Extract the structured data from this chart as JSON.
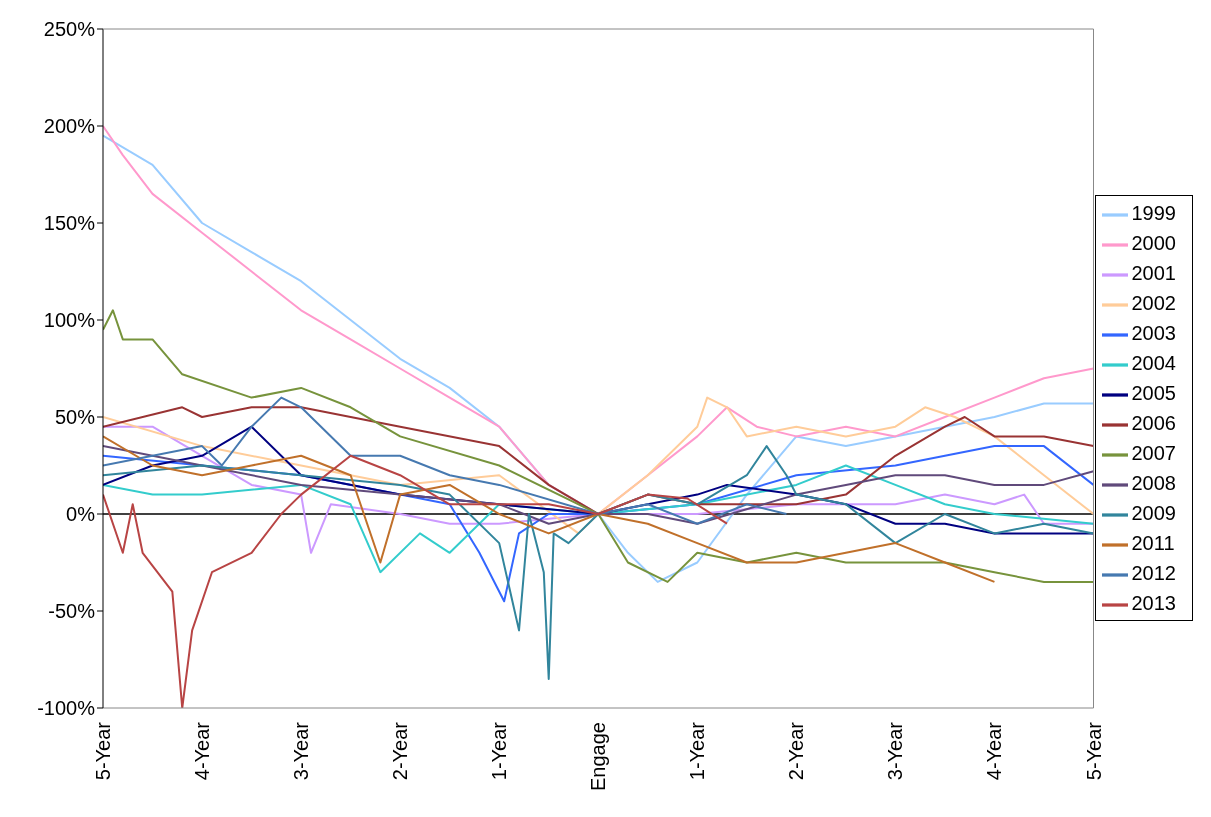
{
  "chart_data": {
    "type": "line",
    "xlim": [
      -5,
      5
    ],
    "xticks": [
      {
        "value": -5,
        "label": "5-Year"
      },
      {
        "value": -4,
        "label": "4-Year"
      },
      {
        "value": -3,
        "label": "3-Year"
      },
      {
        "value": -2,
        "label": "2-Year"
      },
      {
        "value": -1,
        "label": "1-Year"
      },
      {
        "value": 0,
        "label": "Engage"
      },
      {
        "value": 1,
        "label": "1-Year"
      },
      {
        "value": 2,
        "label": "2-Year"
      },
      {
        "value": 3,
        "label": "3-Year"
      },
      {
        "value": 4,
        "label": "4-Year"
      },
      {
        "value": 5,
        "label": "5-Year"
      }
    ],
    "ylim": [
      -100,
      250
    ],
    "yticks": [
      {
        "value": -100,
        "label": "-100%"
      },
      {
        "value": -50,
        "label": "-50%"
      },
      {
        "value": 0,
        "label": "0%"
      },
      {
        "value": 50,
        "label": "50%"
      },
      {
        "value": 100,
        "label": "100%"
      },
      {
        "value": 150,
        "label": "150%"
      },
      {
        "value": 200,
        "label": "200%"
      },
      {
        "value": 250,
        "label": "250%"
      }
    ],
    "legend": "right",
    "marker": "none",
    "line_style": "solid",
    "series": [
      {
        "name": "1999",
        "color": "#99ccff",
        "x": [
          -5,
          -4.5,
          -4,
          -3.5,
          -3,
          -2.5,
          -2,
          -1.5,
          -1,
          -0.5,
          0,
          0.3,
          0.6,
          1,
          1.5,
          2,
          2.5,
          3,
          3.5,
          4,
          4.5,
          5
        ],
        "values": [
          195,
          180,
          150,
          135,
          120,
          100,
          80,
          65,
          45,
          15,
          0,
          -20,
          -35,
          -25,
          10,
          40,
          35,
          40,
          45,
          50,
          57,
          57
        ]
      },
      {
        "name": "2000",
        "color": "#ff99cc",
        "x": [
          -5,
          -4.8,
          -4.5,
          -4,
          -3.5,
          -3,
          -2.5,
          -2,
          -1.5,
          -1,
          -0.5,
          0,
          0.5,
          1,
          1.3,
          1.6,
          2,
          2.5,
          3,
          3.5,
          4,
          4.5,
          5
        ],
        "values": [
          200,
          185,
          165,
          145,
          125,
          105,
          90,
          75,
          60,
          45,
          15,
          0,
          20,
          40,
          55,
          45,
          40,
          45,
          40,
          50,
          60,
          70,
          75
        ]
      },
      {
        "name": "2001",
        "color": "#cc99ff",
        "x": [
          -5,
          -4.5,
          -4,
          -3.5,
          -3,
          -2.9,
          -2.7,
          -2,
          -1.5,
          -1,
          0,
          1,
          2,
          3,
          3.5,
          4,
          4.3,
          4.5,
          5
        ],
        "values": [
          45,
          45,
          30,
          15,
          10,
          -20,
          5,
          0,
          -5,
          -5,
          0,
          0,
          5,
          5,
          10,
          5,
          10,
          -5,
          -5
        ]
      },
      {
        "name": "2002",
        "color": "#ffcc99",
        "x": [
          -5,
          -4,
          -3,
          -2,
          -1,
          -0.2,
          0,
          0.5,
          1,
          1.1,
          1.3,
          1.5,
          2,
          2.5,
          3,
          3.3,
          3.6,
          4,
          4.5,
          5
        ],
        "values": [
          50,
          35,
          25,
          15,
          20,
          -10,
          0,
          20,
          45,
          60,
          55,
          40,
          45,
          40,
          45,
          55,
          50,
          40,
          20,
          0
        ]
      },
      {
        "name": "2003",
        "color": "#3366ff",
        "x": [
          -5,
          -4,
          -3,
          -2,
          -1.5,
          -1.2,
          -0.95,
          -0.8,
          -0.5,
          0,
          1,
          2,
          3,
          3.5,
          4,
          4.5,
          5
        ],
        "values": [
          30,
          25,
          20,
          10,
          5,
          -20,
          -45,
          -10,
          0,
          0,
          5,
          20,
          25,
          30,
          35,
          35,
          15
        ]
      },
      {
        "name": "2004",
        "color": "#33cccc",
        "x": [
          -5,
          -4.5,
          -4,
          -3,
          -2.5,
          -2.2,
          -1.8,
          -1.5,
          -1,
          0,
          1,
          2,
          2.5,
          3,
          3.5,
          4,
          5
        ],
        "values": [
          15,
          10,
          10,
          15,
          5,
          -30,
          -10,
          -20,
          5,
          0,
          5,
          15,
          25,
          15,
          5,
          0,
          -5
        ]
      },
      {
        "name": "2005",
        "color": "#000080",
        "x": [
          -5,
          -4.5,
          -4,
          -3.5,
          -3,
          -2,
          -1,
          0,
          1,
          1.3,
          2,
          2.5,
          3,
          3.5,
          4,
          5
        ],
        "values": [
          15,
          25,
          30,
          45,
          20,
          10,
          5,
          0,
          10,
          15,
          10,
          5,
          -5,
          -5,
          -10,
          -10
        ]
      },
      {
        "name": "2006",
        "color": "#993333",
        "x": [
          -5,
          -4.2,
          -4,
          -3.5,
          -3,
          -2.5,
          -2,
          -1,
          -0.5,
          0,
          0.5,
          1,
          2,
          2.5,
          3,
          3.5,
          3.7,
          4,
          4.5,
          5
        ],
        "values": [
          45,
          55,
          50,
          55,
          55,
          50,
          45,
          35,
          15,
          0,
          10,
          5,
          5,
          10,
          30,
          45,
          50,
          40,
          40,
          35
        ]
      },
      {
        "name": "2007",
        "color": "#77933c",
        "x": [
          -5,
          -4.9,
          -4.8,
          -4.5,
          -4.2,
          -3.5,
          -3,
          -2.5,
          -2,
          -1,
          0,
          0.3,
          0.7,
          1,
          1.5,
          2,
          2.5,
          3,
          3.5,
          4,
          4.5,
          5
        ],
        "values": [
          95,
          105,
          90,
          90,
          72,
          60,
          65,
          55,
          40,
          25,
          0,
          -25,
          -35,
          -20,
          -25,
          -20,
          -25,
          -25,
          -25,
          -30,
          -35,
          -35
        ]
      },
      {
        "name": "2008",
        "color": "#604a7b",
        "x": [
          -5,
          -4.5,
          -4,
          -3,
          -2,
          -1,
          -0.5,
          0,
          0.5,
          1,
          2,
          2.5,
          3,
          3.5,
          4,
          4.5,
          5
        ],
        "values": [
          35,
          30,
          25,
          15,
          10,
          5,
          -5,
          0,
          0,
          -5,
          10,
          15,
          20,
          20,
          15,
          15,
          22
        ]
      },
      {
        "name": "2009",
        "color": "#31859c",
        "x": [
          -5,
          -4,
          -3,
          -2,
          -1.5,
          -1,
          -0.8,
          -0.7,
          -0.55,
          -0.5,
          -0.45,
          -0.3,
          0,
          0.5,
          1,
          1.5,
          1.7,
          1.9,
          2,
          2.5,
          3,
          3.5,
          4,
          4.5,
          5
        ],
        "values": [
          20,
          25,
          20,
          15,
          10,
          -15,
          -60,
          0,
          -30,
          -85,
          -10,
          -15,
          0,
          10,
          5,
          20,
          35,
          20,
          10,
          5,
          -15,
          0,
          -10,
          -5,
          -10
        ]
      },
      {
        "name": "2011",
        "color": "#c0702a",
        "x": [
          -5,
          -4.5,
          -4,
          -3.5,
          -3,
          -2.5,
          -2.2,
          -2,
          -1.5,
          -1,
          -0.5,
          0,
          0.5,
          1,
          1.5,
          2,
          2.5,
          3,
          3.5,
          4
        ],
        "values": [
          40,
          25,
          20,
          25,
          30,
          20,
          -25,
          10,
          15,
          0,
          -10,
          0,
          -5,
          -15,
          -25,
          -25,
          -20,
          -15,
          -25,
          -35
        ]
      },
      {
        "name": "2012",
        "color": "#4679b0",
        "x": [
          -5,
          -4,
          -3.8,
          -3.5,
          -3.2,
          -3,
          -2.5,
          -2,
          -1.5,
          -1,
          0,
          0.5,
          1,
          1.5,
          1.9
        ],
        "values": [
          25,
          35,
          25,
          45,
          60,
          55,
          30,
          30,
          20,
          15,
          0,
          5,
          -5,
          5,
          0
        ]
      },
      {
        "name": "2013",
        "color": "#b84444",
        "x": [
          -5,
          -4.8,
          -4.7,
          -4.6,
          -4.3,
          -4.2,
          -4.1,
          -3.9,
          -3.5,
          -3.2,
          -3,
          -2.5,
          -2,
          -1.5,
          -1,
          -0.5,
          0,
          0.5,
          0.9,
          1.3
        ],
        "values": [
          10,
          -20,
          5,
          -20,
          -40,
          -100,
          -60,
          -30,
          -20,
          0,
          10,
          30,
          20,
          5,
          5,
          5,
          0,
          10,
          8,
          -5
        ]
      }
    ]
  }
}
